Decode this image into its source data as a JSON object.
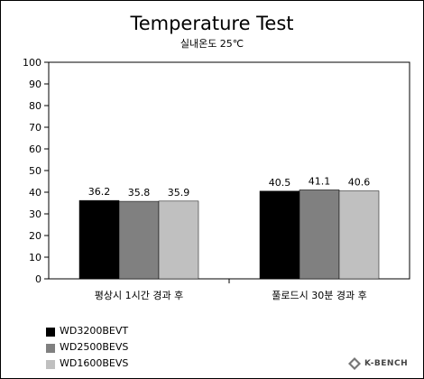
{
  "chart_data": {
    "type": "bar",
    "title": "Temperature Test",
    "subtitle": "실내온도 25℃",
    "categories": [
      "평상시 1시간 경과 후",
      "풀로드시 30분 경과 후"
    ],
    "series": [
      {
        "name": "WD3200BEVT",
        "color": "#000000",
        "values": [
          36.2,
          40.5
        ]
      },
      {
        "name": "WD2500BEVS",
        "color": "#808080",
        "values": [
          35.8,
          41.1
        ]
      },
      {
        "name": "WD1600BEVS",
        "color": "#c0c0c0",
        "values": [
          35.9,
          40.6
        ]
      }
    ],
    "ylim": [
      0,
      100
    ],
    "yticks": [
      "0",
      "10",
      "20",
      "30",
      "40",
      "50",
      "60",
      "70",
      "80",
      "90",
      "100"
    ],
    "grid": false,
    "legend": "bottom-left"
  },
  "logo": {
    "text": "K-BENCH"
  }
}
